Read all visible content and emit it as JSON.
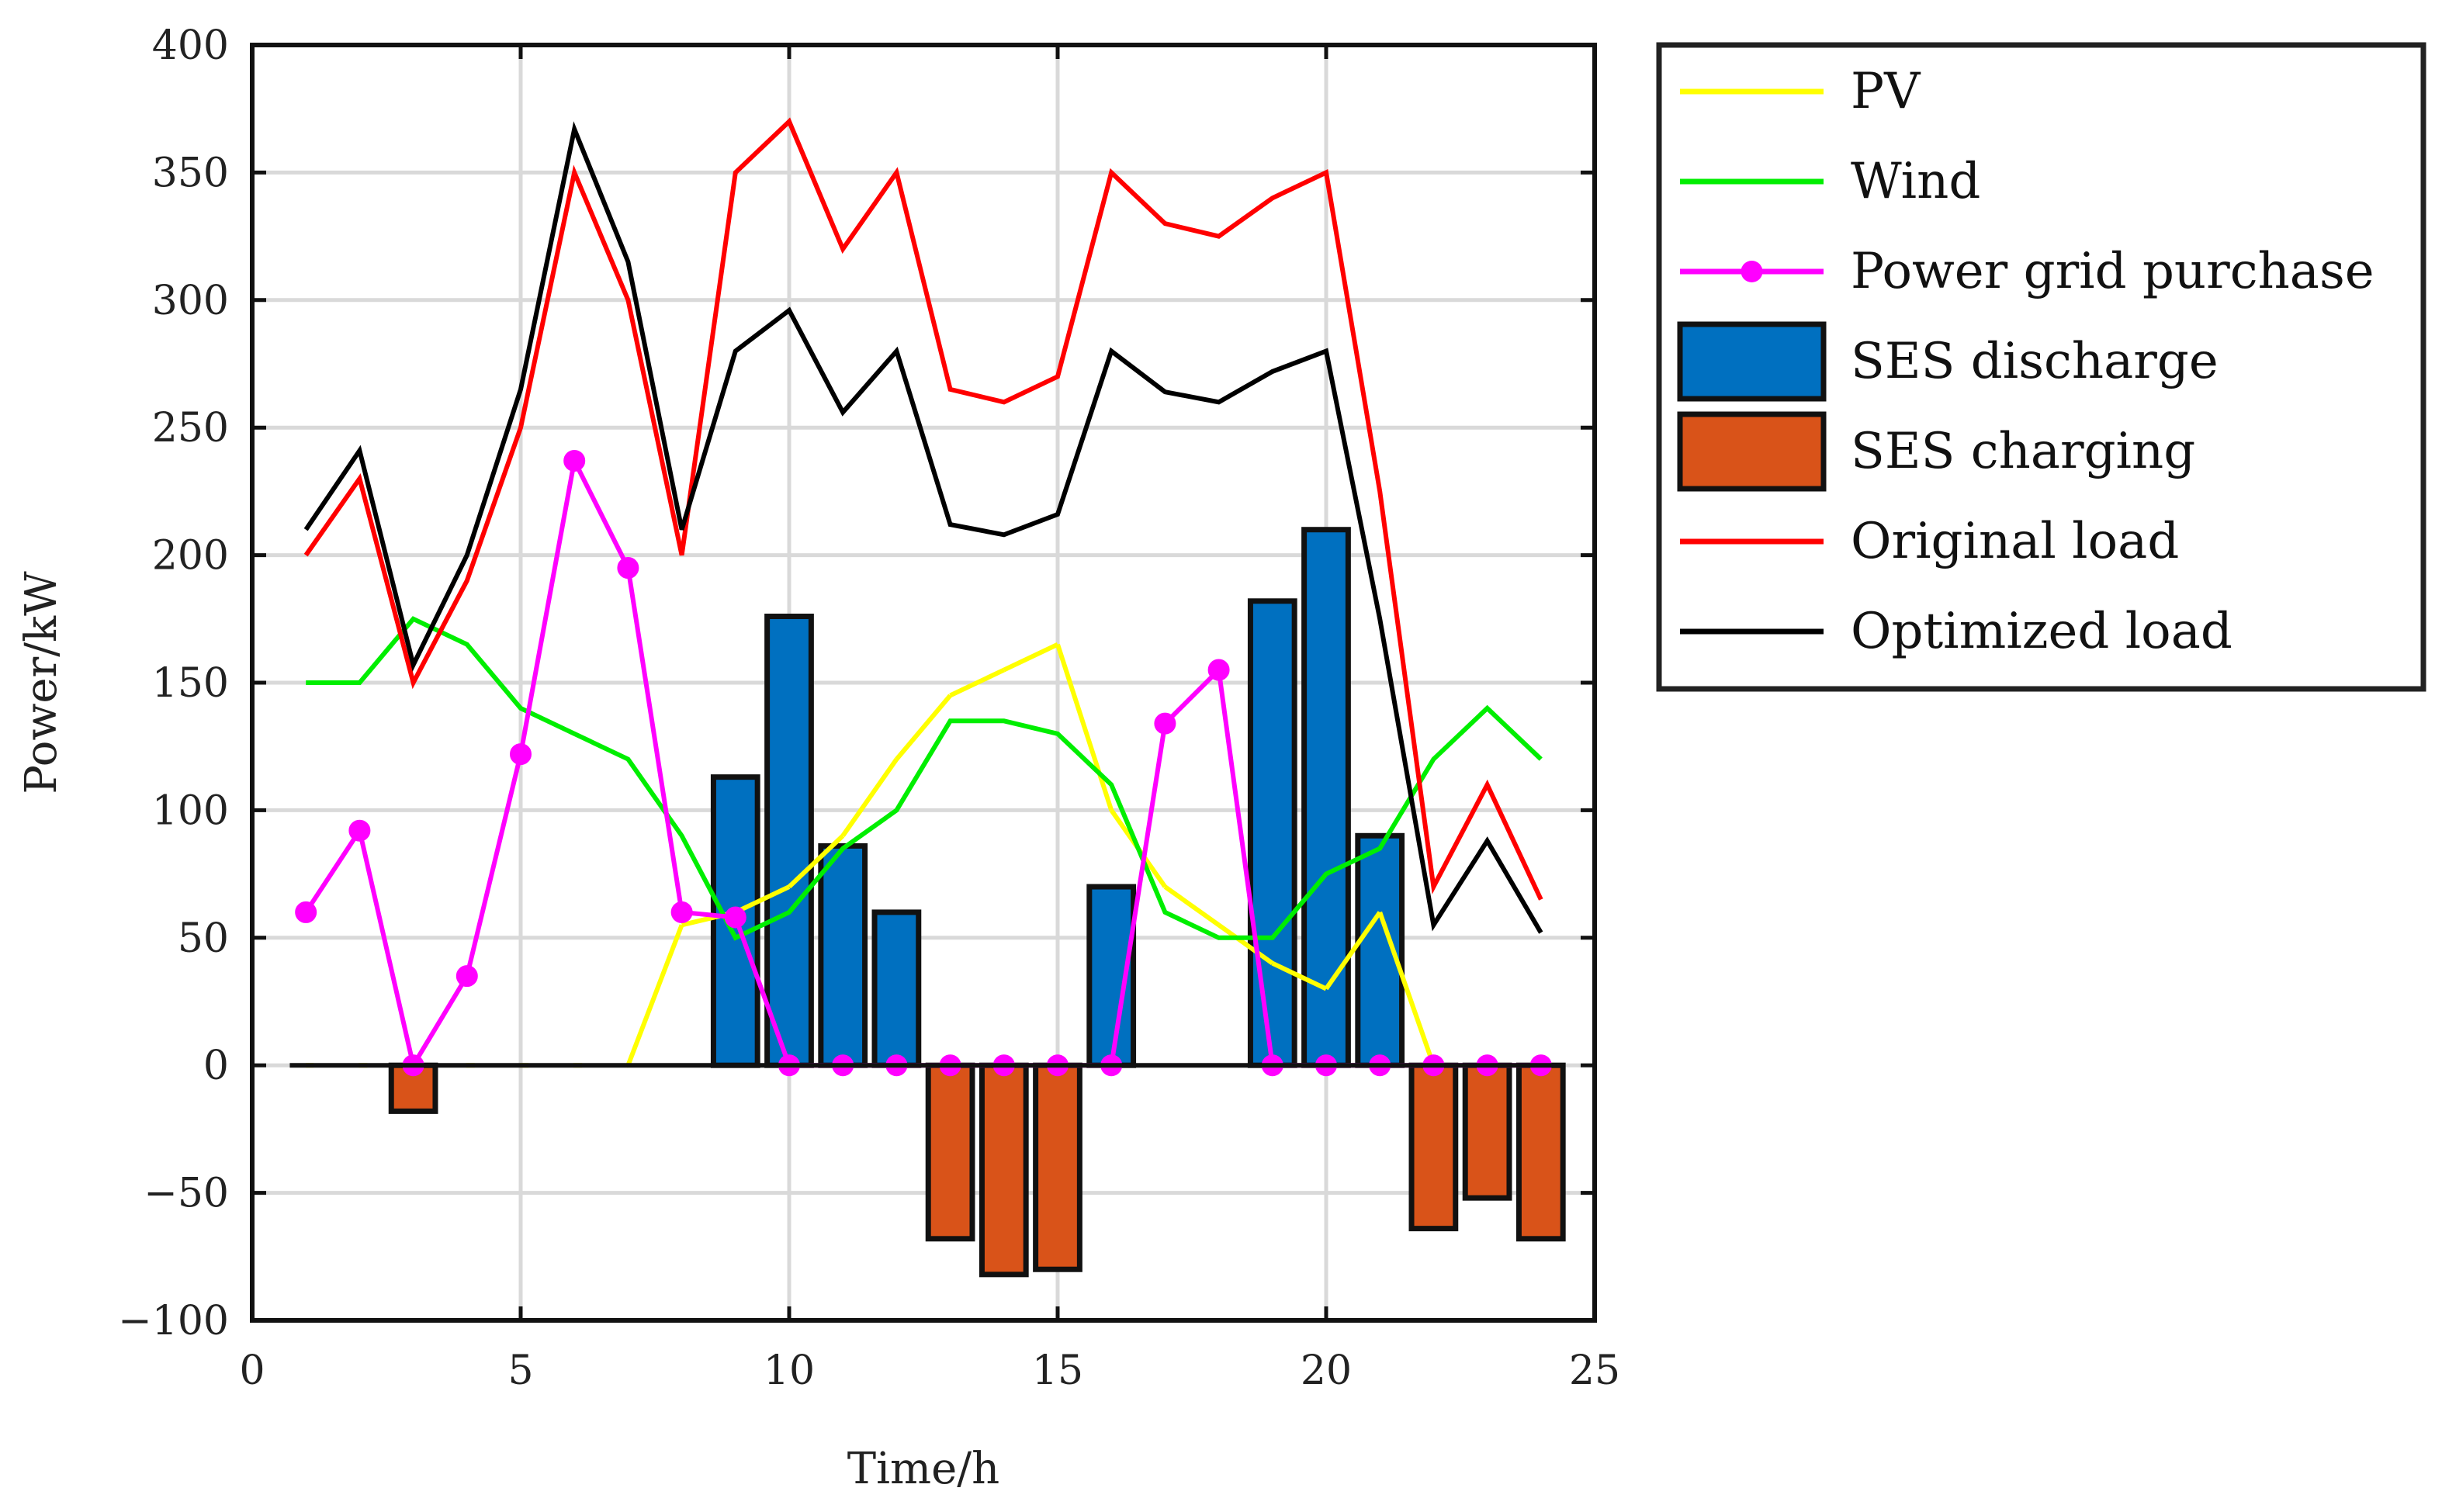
{
  "chart_data": {
    "type": "bar",
    "xlabel": "Time/h",
    "ylabel": "Power/kW",
    "xlim": [
      0,
      25
    ],
    "ylim": [
      -100,
      400
    ],
    "xticks": [
      0,
      5,
      10,
      15,
      20,
      25
    ],
    "yticks": [
      400,
      350,
      300,
      250,
      200,
      150,
      100,
      50,
      0,
      -50,
      -100
    ],
    "ytick_labels": [
      "400",
      "350",
      "300",
      "250",
      "200",
      "150",
      "100",
      "50",
      "0",
      "−50",
      "−100"
    ],
    "grid": true,
    "legend_position": "outside-right",
    "x": [
      1,
      2,
      3,
      4,
      5,
      6,
      7,
      8,
      9,
      10,
      11,
      12,
      13,
      14,
      15,
      16,
      17,
      18,
      19,
      20,
      21,
      22,
      23,
      24
    ],
    "series": [
      {
        "name": "PV",
        "kind": "line",
        "color": "#ffff00",
        "style": "dashed-when-zero",
        "values": [
          0,
          0,
          0,
          0,
          0,
          0,
          0,
          55,
          60,
          70,
          90,
          120,
          145,
          155,
          165,
          100,
          70,
          55,
          40,
          30,
          60,
          0,
          0,
          0
        ]
      },
      {
        "name": "Wind",
        "kind": "line",
        "color": "#00ee00",
        "values": [
          150,
          150,
          175,
          165,
          140,
          130,
          120,
          90,
          50,
          60,
          85,
          100,
          135,
          135,
          130,
          110,
          60,
          50,
          50,
          75,
          85,
          120,
          140,
          120
        ]
      },
      {
        "name": "Power grid purchase",
        "kind": "line-marker",
        "color": "#ff00ff",
        "values": [
          60,
          92,
          0,
          35,
          122,
          237,
          195,
          60,
          58,
          0,
          0,
          0,
          0,
          0,
          0,
          0,
          134,
          155,
          0,
          0,
          0,
          0,
          0,
          0
        ]
      },
      {
        "name": "SES discharge",
        "kind": "bar",
        "color": "#0070c0",
        "values": [
          0,
          0,
          0,
          0,
          0,
          0,
          0,
          0,
          113,
          176,
          86,
          60,
          0,
          0,
          0,
          70,
          0,
          0,
          182,
          210,
          90,
          0,
          0,
          0
        ]
      },
      {
        "name": "SES charging",
        "kind": "bar",
        "color": "#d95319",
        "values": [
          0,
          0,
          -18,
          0,
          0,
          0,
          0,
          0,
          0,
          0,
          0,
          0,
          -68,
          -82,
          -80,
          0,
          0,
          0,
          0,
          0,
          0,
          -64,
          -52,
          -68
        ]
      },
      {
        "name": "Original load",
        "kind": "line",
        "color": "#ff0000",
        "values": [
          200,
          230,
          150,
          190,
          250,
          350,
          300,
          200,
          350,
          370,
          320,
          350,
          265,
          260,
          270,
          350,
          330,
          325,
          340,
          350,
          225,
          70,
          110,
          65
        ]
      },
      {
        "name": "Optimized load",
        "kind": "line",
        "color": "#000000",
        "values": [
          210,
          241,
          157,
          200,
          265,
          367,
          315,
          210,
          280,
          296,
          256,
          280,
          212,
          208,
          216,
          280,
          264,
          260,
          272,
          280,
          175,
          55,
          88,
          52
        ]
      }
    ],
    "legend_entries": [
      "PV",
      "Wind",
      "Power grid purchase",
      "SES discharge",
      "SES charging",
      "Original load",
      "Optimized load"
    ]
  }
}
